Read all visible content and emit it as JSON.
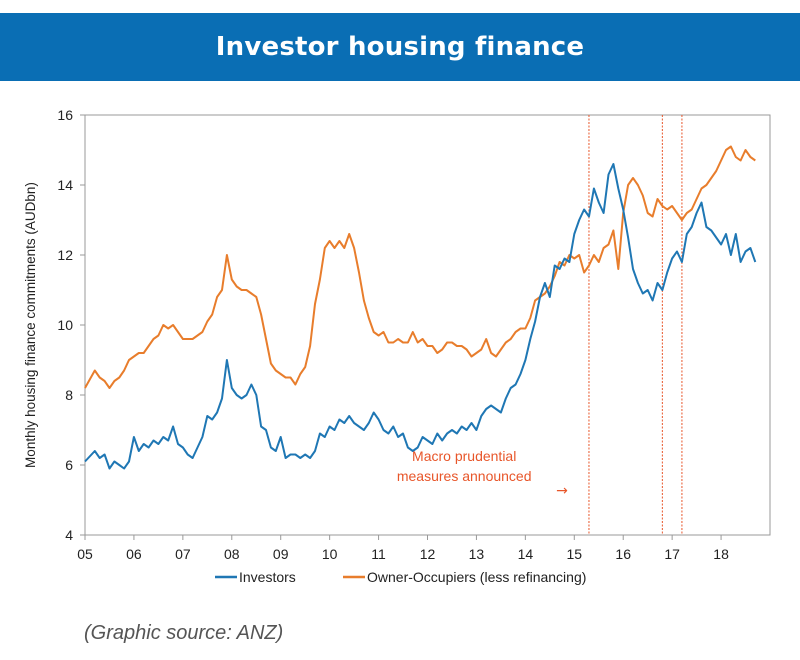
{
  "banner": {
    "title": "Investor housing finance"
  },
  "source_note": "(Graphic source: ANZ)",
  "colors": {
    "banner": "#0a6eb4",
    "investors": "#1f77b4",
    "owner_occupiers": "#e87d2c",
    "annotation": "#e8562a"
  },
  "chart_data": {
    "type": "line",
    "title": "",
    "ylabel": "Monthly housing finance commitments (AUDbn)",
    "xlabel": "",
    "xlim": [
      5,
      19
    ],
    "ylim": [
      4,
      16
    ],
    "x_ticks": [
      5,
      6,
      7,
      8,
      9,
      10,
      11,
      12,
      13,
      14,
      15,
      16,
      17,
      18
    ],
    "x_tick_labels": [
      "05",
      "06",
      "07",
      "08",
      "09",
      "10",
      "11",
      "12",
      "13",
      "14",
      "15",
      "16",
      "17",
      "18"
    ],
    "y_ticks": [
      4,
      6,
      8,
      10,
      12,
      14,
      16
    ],
    "y_tick_labels": [
      "4",
      "6",
      "8",
      "10",
      "12",
      "14",
      "16"
    ],
    "grid": false,
    "legend_position": "bottom",
    "series": [
      {
        "name": "Investors",
        "color": "#1f77b4",
        "points": [
          [
            5.0,
            6.1
          ],
          [
            5.2,
            6.4
          ],
          [
            5.3,
            6.2
          ],
          [
            5.4,
            6.3
          ],
          [
            5.5,
            5.9
          ],
          [
            5.6,
            6.1
          ],
          [
            5.7,
            6.0
          ],
          [
            5.8,
            5.9
          ],
          [
            5.9,
            6.1
          ],
          [
            6.0,
            6.8
          ],
          [
            6.1,
            6.4
          ],
          [
            6.2,
            6.6
          ],
          [
            6.3,
            6.5
          ],
          [
            6.4,
            6.7
          ],
          [
            6.5,
            6.6
          ],
          [
            6.6,
            6.8
          ],
          [
            6.7,
            6.7
          ],
          [
            6.8,
            7.1
          ],
          [
            6.9,
            6.6
          ],
          [
            7.0,
            6.5
          ],
          [
            7.1,
            6.3
          ],
          [
            7.2,
            6.2
          ],
          [
            7.3,
            6.5
          ],
          [
            7.4,
            6.8
          ],
          [
            7.5,
            7.4
          ],
          [
            7.6,
            7.3
          ],
          [
            7.7,
            7.5
          ],
          [
            7.8,
            7.9
          ],
          [
            7.9,
            9.0
          ],
          [
            8.0,
            8.2
          ],
          [
            8.1,
            8.0
          ],
          [
            8.2,
            7.9
          ],
          [
            8.3,
            8.0
          ],
          [
            8.4,
            8.3
          ],
          [
            8.5,
            8.0
          ],
          [
            8.6,
            7.1
          ],
          [
            8.7,
            7.0
          ],
          [
            8.8,
            6.5
          ],
          [
            8.9,
            6.4
          ],
          [
            9.0,
            6.8
          ],
          [
            9.1,
            6.2
          ],
          [
            9.2,
            6.3
          ],
          [
            9.3,
            6.3
          ],
          [
            9.4,
            6.2
          ],
          [
            9.5,
            6.3
          ],
          [
            9.6,
            6.2
          ],
          [
            9.7,
            6.4
          ],
          [
            9.8,
            6.9
          ],
          [
            9.9,
            6.8
          ],
          [
            10.0,
            7.1
          ],
          [
            10.1,
            7.0
          ],
          [
            10.2,
            7.3
          ],
          [
            10.3,
            7.2
          ],
          [
            10.4,
            7.4
          ],
          [
            10.5,
            7.2
          ],
          [
            10.6,
            7.1
          ],
          [
            10.7,
            7.0
          ],
          [
            10.8,
            7.2
          ],
          [
            10.9,
            7.5
          ],
          [
            11.0,
            7.3
          ],
          [
            11.1,
            7.0
          ],
          [
            11.2,
            6.9
          ],
          [
            11.3,
            7.1
          ],
          [
            11.4,
            6.8
          ],
          [
            11.5,
            6.9
          ],
          [
            11.6,
            6.5
          ],
          [
            11.7,
            6.4
          ],
          [
            11.8,
            6.5
          ],
          [
            11.9,
            6.8
          ],
          [
            12.0,
            6.7
          ],
          [
            12.1,
            6.6
          ],
          [
            12.2,
            6.9
          ],
          [
            12.3,
            6.7
          ],
          [
            12.4,
            6.9
          ],
          [
            12.5,
            7.0
          ],
          [
            12.6,
            6.9
          ],
          [
            12.7,
            7.1
          ],
          [
            12.8,
            7.0
          ],
          [
            12.9,
            7.2
          ],
          [
            13.0,
            7.0
          ],
          [
            13.1,
            7.4
          ],
          [
            13.2,
            7.6
          ],
          [
            13.3,
            7.7
          ],
          [
            13.4,
            7.6
          ],
          [
            13.5,
            7.5
          ],
          [
            13.6,
            7.9
          ],
          [
            13.7,
            8.2
          ],
          [
            13.8,
            8.3
          ],
          [
            13.9,
            8.6
          ],
          [
            14.0,
            9.0
          ],
          [
            14.1,
            9.6
          ],
          [
            14.2,
            10.1
          ],
          [
            14.3,
            10.8
          ],
          [
            14.4,
            11.2
          ],
          [
            14.5,
            10.8
          ],
          [
            14.6,
            11.7
          ],
          [
            14.7,
            11.6
          ],
          [
            14.8,
            11.9
          ],
          [
            14.9,
            11.8
          ],
          [
            15.0,
            12.6
          ],
          [
            15.1,
            13.0
          ],
          [
            15.2,
            13.3
          ],
          [
            15.3,
            13.1
          ],
          [
            15.4,
            13.9
          ],
          [
            15.5,
            13.5
          ],
          [
            15.6,
            13.2
          ],
          [
            15.7,
            14.3
          ],
          [
            15.8,
            14.6
          ],
          [
            15.9,
            13.9
          ],
          [
            16.0,
            13.3
          ],
          [
            16.1,
            12.5
          ],
          [
            16.2,
            11.6
          ],
          [
            16.3,
            11.2
          ],
          [
            16.4,
            10.9
          ],
          [
            16.5,
            11.0
          ],
          [
            16.6,
            10.7
          ],
          [
            16.7,
            11.2
          ],
          [
            16.8,
            11.0
          ],
          [
            16.9,
            11.5
          ],
          [
            17.0,
            11.9
          ],
          [
            17.1,
            12.1
          ],
          [
            17.2,
            11.8
          ],
          [
            17.3,
            12.6
          ],
          [
            17.4,
            12.8
          ],
          [
            17.5,
            13.2
          ],
          [
            17.6,
            13.5
          ],
          [
            17.7,
            12.8
          ],
          [
            17.8,
            12.7
          ],
          [
            17.9,
            12.5
          ],
          [
            18.0,
            12.3
          ],
          [
            18.1,
            12.6
          ],
          [
            18.2,
            12.0
          ],
          [
            18.3,
            12.6
          ],
          [
            18.4,
            11.8
          ],
          [
            18.5,
            12.1
          ],
          [
            18.6,
            12.2
          ],
          [
            18.7,
            11.8
          ]
        ]
      },
      {
        "name": "Owner-Occupiers (less refinancing)",
        "color": "#e87d2c",
        "points": [
          [
            5.0,
            8.2
          ],
          [
            5.2,
            8.7
          ],
          [
            5.3,
            8.5
          ],
          [
            5.4,
            8.4
          ],
          [
            5.5,
            8.2
          ],
          [
            5.6,
            8.4
          ],
          [
            5.7,
            8.5
          ],
          [
            5.8,
            8.7
          ],
          [
            5.9,
            9.0
          ],
          [
            6.0,
            9.1
          ],
          [
            6.1,
            9.2
          ],
          [
            6.2,
            9.2
          ],
          [
            6.3,
            9.4
          ],
          [
            6.4,
            9.6
          ],
          [
            6.5,
            9.7
          ],
          [
            6.6,
            10.0
          ],
          [
            6.7,
            9.9
          ],
          [
            6.8,
            10.0
          ],
          [
            6.9,
            9.8
          ],
          [
            7.0,
            9.6
          ],
          [
            7.1,
            9.6
          ],
          [
            7.2,
            9.6
          ],
          [
            7.3,
            9.7
          ],
          [
            7.4,
            9.8
          ],
          [
            7.5,
            10.1
          ],
          [
            7.6,
            10.3
          ],
          [
            7.7,
            10.8
          ],
          [
            7.8,
            11.0
          ],
          [
            7.9,
            12.0
          ],
          [
            8.0,
            11.3
          ],
          [
            8.1,
            11.1
          ],
          [
            8.2,
            11.0
          ],
          [
            8.3,
            11.0
          ],
          [
            8.4,
            10.9
          ],
          [
            8.5,
            10.8
          ],
          [
            8.6,
            10.3
          ],
          [
            8.7,
            9.6
          ],
          [
            8.8,
            8.9
          ],
          [
            8.9,
            8.7
          ],
          [
            9.0,
            8.6
          ],
          [
            9.1,
            8.5
          ],
          [
            9.2,
            8.5
          ],
          [
            9.3,
            8.3
          ],
          [
            9.4,
            8.6
          ],
          [
            9.5,
            8.8
          ],
          [
            9.6,
            9.4
          ],
          [
            9.7,
            10.6
          ],
          [
            9.8,
            11.3
          ],
          [
            9.9,
            12.2
          ],
          [
            10.0,
            12.4
          ],
          [
            10.1,
            12.2
          ],
          [
            10.2,
            12.4
          ],
          [
            10.3,
            12.2
          ],
          [
            10.4,
            12.6
          ],
          [
            10.5,
            12.2
          ],
          [
            10.6,
            11.5
          ],
          [
            10.7,
            10.7
          ],
          [
            10.8,
            10.2
          ],
          [
            10.9,
            9.8
          ],
          [
            11.0,
            9.7
          ],
          [
            11.1,
            9.8
          ],
          [
            11.2,
            9.5
          ],
          [
            11.3,
            9.5
          ],
          [
            11.4,
            9.6
          ],
          [
            11.5,
            9.5
          ],
          [
            11.6,
            9.5
          ],
          [
            11.7,
            9.8
          ],
          [
            11.8,
            9.5
          ],
          [
            11.9,
            9.6
          ],
          [
            12.0,
            9.4
          ],
          [
            12.1,
            9.4
          ],
          [
            12.2,
            9.2
          ],
          [
            12.3,
            9.3
          ],
          [
            12.4,
            9.5
          ],
          [
            12.5,
            9.5
          ],
          [
            12.6,
            9.4
          ],
          [
            12.7,
            9.4
          ],
          [
            12.8,
            9.3
          ],
          [
            12.9,
            9.1
          ],
          [
            13.0,
            9.2
          ],
          [
            13.1,
            9.3
          ],
          [
            13.2,
            9.6
          ],
          [
            13.3,
            9.2
          ],
          [
            13.4,
            9.1
          ],
          [
            13.5,
            9.3
          ],
          [
            13.6,
            9.5
          ],
          [
            13.7,
            9.6
          ],
          [
            13.8,
            9.8
          ],
          [
            13.9,
            9.9
          ],
          [
            14.0,
            9.9
          ],
          [
            14.1,
            10.2
          ],
          [
            14.2,
            10.7
          ],
          [
            14.3,
            10.8
          ],
          [
            14.4,
            10.9
          ],
          [
            14.5,
            11.1
          ],
          [
            14.6,
            11.4
          ],
          [
            14.7,
            11.8
          ],
          [
            14.8,
            11.7
          ],
          [
            14.9,
            12.0
          ],
          [
            15.0,
            11.9
          ],
          [
            15.1,
            12.0
          ],
          [
            15.2,
            11.5
          ],
          [
            15.3,
            11.7
          ],
          [
            15.4,
            12.0
          ],
          [
            15.5,
            11.8
          ],
          [
            15.6,
            12.2
          ],
          [
            15.7,
            12.3
          ],
          [
            15.8,
            12.7
          ],
          [
            15.9,
            11.6
          ],
          [
            16.0,
            13.2
          ],
          [
            16.1,
            14.0
          ],
          [
            16.2,
            14.2
          ],
          [
            16.3,
            14.0
          ],
          [
            16.4,
            13.7
          ],
          [
            16.5,
            13.2
          ],
          [
            16.6,
            13.1
          ],
          [
            16.7,
            13.6
          ],
          [
            16.8,
            13.4
          ],
          [
            16.9,
            13.3
          ],
          [
            17.0,
            13.4
          ],
          [
            17.1,
            13.2
          ],
          [
            17.2,
            13.0
          ],
          [
            17.3,
            13.2
          ],
          [
            17.4,
            13.3
          ],
          [
            17.5,
            13.6
          ],
          [
            17.6,
            13.9
          ],
          [
            17.7,
            14.0
          ],
          [
            17.8,
            14.2
          ],
          [
            17.9,
            14.4
          ],
          [
            18.0,
            14.7
          ],
          [
            18.1,
            15.0
          ],
          [
            18.2,
            15.1
          ],
          [
            18.3,
            14.8
          ],
          [
            18.4,
            14.7
          ],
          [
            18.5,
            15.0
          ],
          [
            18.6,
            14.8
          ],
          [
            18.7,
            14.7
          ]
        ]
      }
    ],
    "vlines": [
      15.3,
      16.8,
      17.2
    ],
    "annotation": {
      "text": [
        "Macro prudential",
        "measures announced"
      ],
      "arrow": "→"
    }
  }
}
